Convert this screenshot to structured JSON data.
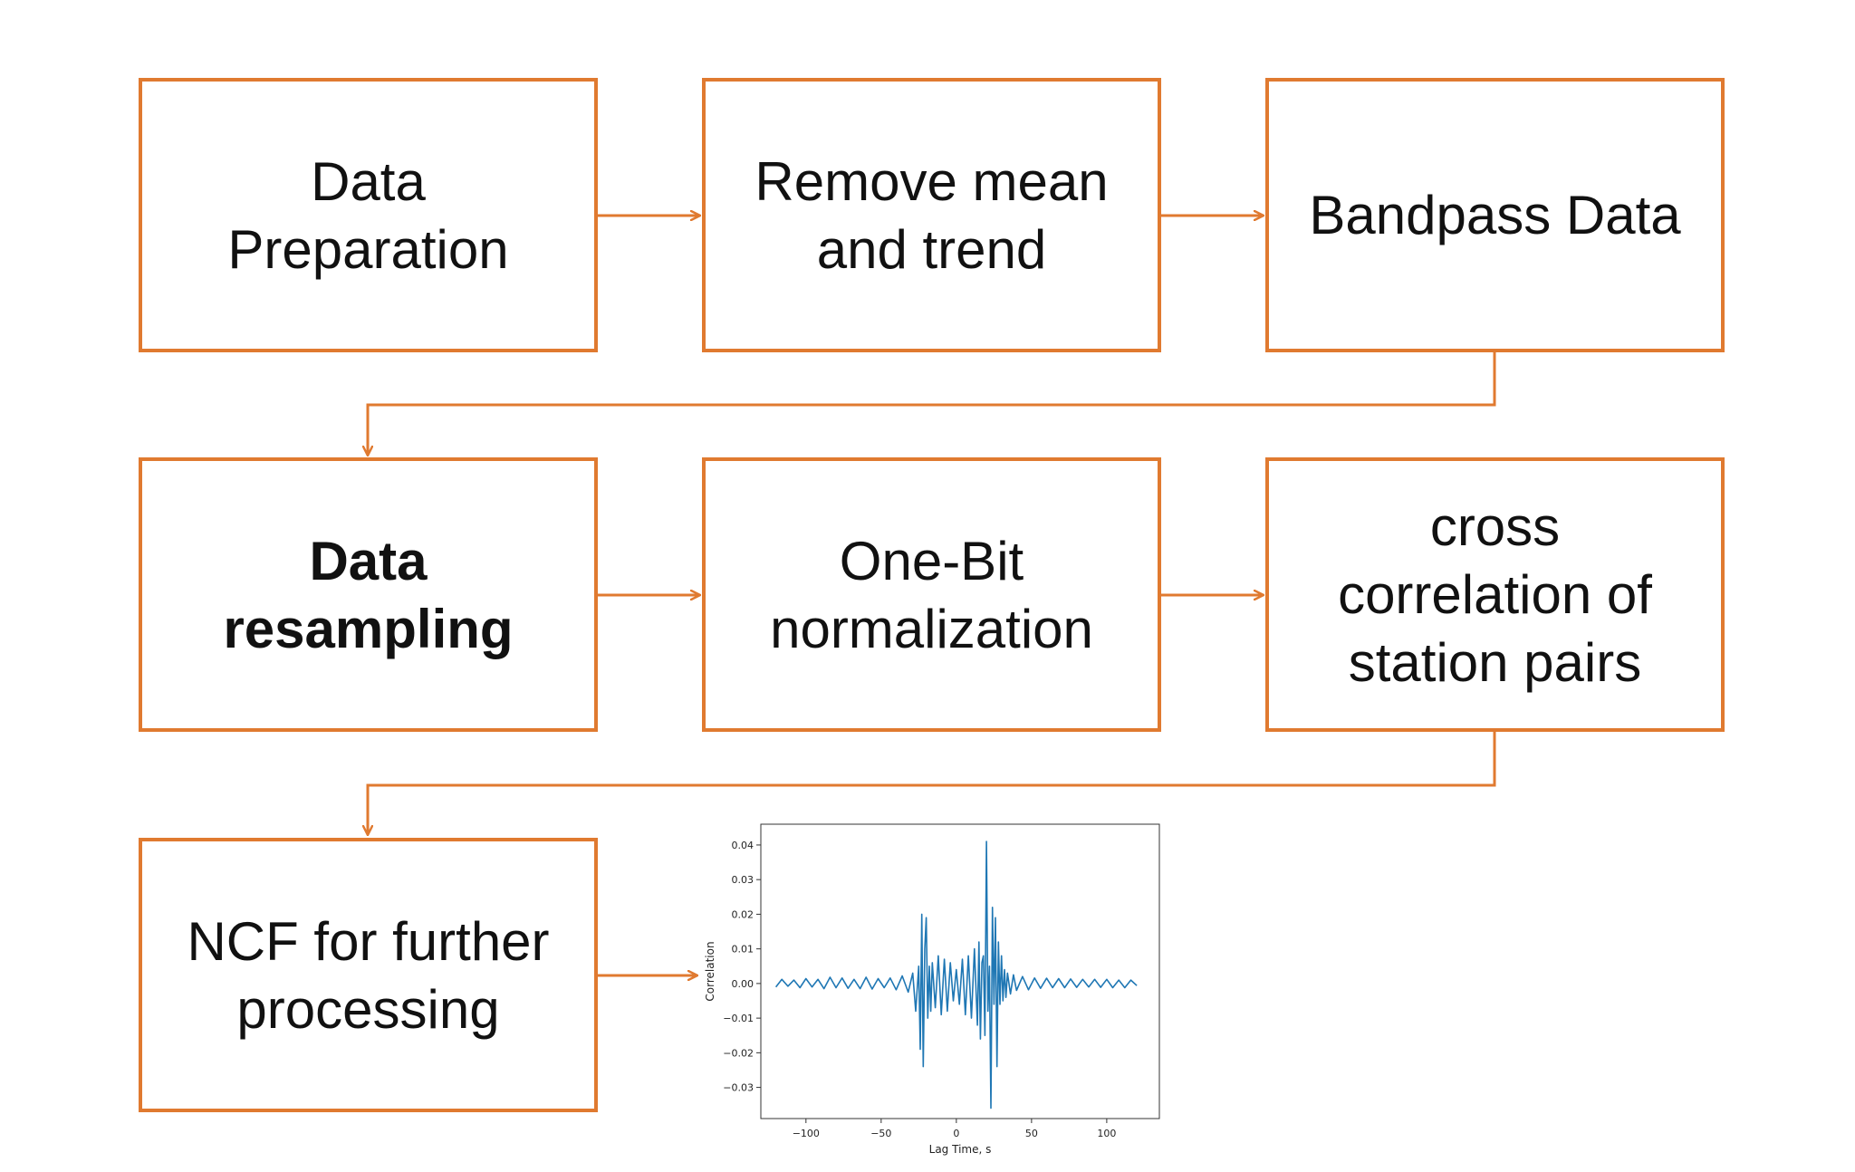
{
  "diagram": {
    "accent_color": "#e07a30",
    "steps": [
      {
        "label": "Data\nPreparation",
        "bold": false
      },
      {
        "label": "Remove mean\nand trend",
        "bold": false
      },
      {
        "label": "Bandpass Data",
        "bold": false
      },
      {
        "label": "Data\nresampling",
        "bold": true
      },
      {
        "label": "One-Bit\nnormalization",
        "bold": false
      },
      {
        "label": "cross\ncorrelation of\nstation pairs",
        "bold": false
      },
      {
        "label": "NCF for further\nprocessing",
        "bold": false
      }
    ],
    "connections": [
      {
        "from": 1,
        "to": 2
      },
      {
        "from": 2,
        "to": 3
      },
      {
        "from": 3,
        "to": 4
      },
      {
        "from": 4,
        "to": 5
      },
      {
        "from": 5,
        "to": 6
      },
      {
        "from": 6,
        "to": 7
      },
      {
        "from": 7,
        "to": "ncf-chart"
      }
    ]
  },
  "chart_data": {
    "type": "line",
    "title": "",
    "xlabel": "Lag Time, s",
    "ylabel": "Correlation",
    "xlim": [
      -130,
      135
    ],
    "ylim": [
      -0.039,
      0.046
    ],
    "x_ticks": [
      -100,
      -50,
      0,
      50,
      100
    ],
    "x_tick_labels": [
      "−100",
      "−50",
      "0",
      "50",
      "100"
    ],
    "y_ticks": [
      0.04,
      0.03,
      0.02,
      0.01,
      0.0,
      -0.01,
      -0.02,
      -0.03
    ],
    "y_tick_labels": [
      "0.04",
      "0.03",
      "0.02",
      "0.01",
      "0.00",
      "−0.01",
      "−0.02",
      "−0.03"
    ],
    "grid": false,
    "series": [
      {
        "color": "#1f77b4",
        "x": [
          -120,
          -116,
          -112,
          -108,
          -104,
          -100,
          -96,
          -92,
          -88,
          -84,
          -80,
          -76,
          -72,
          -68,
          -64,
          -60,
          -56,
          -52,
          -48,
          -44,
          -40,
          -36,
          -32,
          -29,
          -27,
          -25,
          -24,
          -23,
          -22,
          -21,
          -20,
          -19,
          -18,
          -17,
          -16,
          -14,
          -12,
          -10,
          -8,
          -6,
          -4,
          -2,
          0,
          2,
          4,
          6,
          8,
          10,
          12,
          14,
          15,
          16,
          17,
          18,
          19,
          20,
          21,
          22,
          23,
          24,
          25,
          26,
          27,
          28,
          29,
          30,
          31,
          32,
          33,
          34,
          36,
          38,
          40,
          44,
          48,
          52,
          56,
          60,
          64,
          68,
          72,
          76,
          80,
          84,
          88,
          92,
          96,
          100,
          104,
          108,
          112,
          116,
          120
        ],
        "y": [
          -0.001,
          0.0012,
          -0.0008,
          0.001,
          -0.0012,
          0.0014,
          -0.001,
          0.0012,
          -0.0015,
          0.0018,
          -0.0012,
          0.0016,
          -0.0014,
          0.0012,
          -0.0015,
          0.0018,
          -0.0016,
          0.0014,
          -0.0012,
          0.0016,
          -0.0018,
          0.0022,
          -0.0025,
          0.003,
          -0.008,
          0.005,
          -0.019,
          0.02,
          -0.024,
          0.01,
          0.019,
          -0.01,
          0.005,
          -0.008,
          0.006,
          -0.007,
          0.008,
          -0.009,
          0.007,
          -0.008,
          0.006,
          -0.005,
          0.004,
          -0.006,
          0.007,
          -0.009,
          0.008,
          -0.01,
          0.01,
          -0.012,
          0.012,
          -0.016,
          0.006,
          0.008,
          -0.015,
          0.041,
          -0.008,
          0.005,
          -0.036,
          0.022,
          -0.006,
          0.019,
          -0.024,
          0.012,
          -0.006,
          0.008,
          -0.005,
          0.004,
          -0.004,
          0.003,
          -0.003,
          0.0025,
          -0.002,
          0.002,
          -0.0018,
          0.0016,
          -0.0014,
          0.0015,
          -0.0012,
          0.0014,
          -0.0012,
          0.0013,
          -0.0011,
          0.0012,
          -0.001,
          0.0012,
          -0.0011,
          0.0012,
          -0.0012,
          0.001,
          -0.0012,
          0.001,
          -0.0006
        ]
      }
    ]
  }
}
